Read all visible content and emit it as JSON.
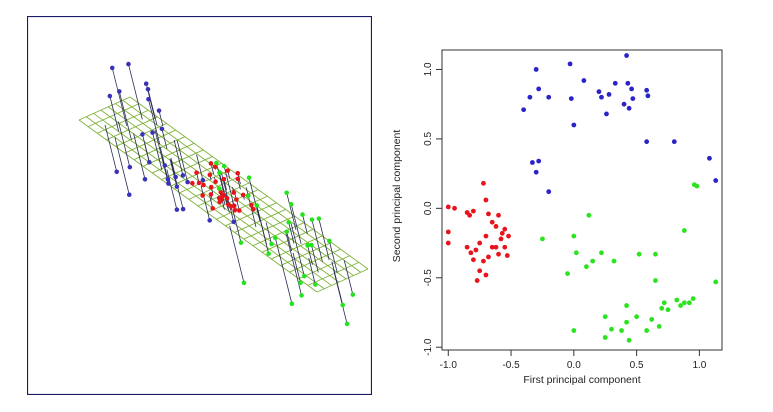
{
  "chart_data": [
    {
      "type": "scatter",
      "panel": "3d-projection",
      "title": "",
      "xlabel": "",
      "ylabel": "",
      "grid": true,
      "colors": {
        "blue": "#3a33b8",
        "red": "#e8141c",
        "green": "#22e41e",
        "plane": "#7fb23a",
        "frame": "#1a1a66",
        "projection_line": "#2a2a55"
      }
    },
    {
      "type": "scatter",
      "panel": "pca-scores",
      "title": "",
      "xlabel": "First principal component",
      "ylabel": "Second principal component",
      "xlim": [
        -1.05,
        1.18
      ],
      "ylim": [
        -1.02,
        1.14
      ],
      "xticks": [
        "-1.0",
        "-0.5",
        "0.0",
        "0.5",
        "1.0"
      ],
      "xtick_values": [
        -1.0,
        -0.5,
        0.0,
        0.5,
        1.0
      ],
      "yticks": [
        "-1.0",
        "-0.5",
        "0.0",
        "0.5",
        "1.0"
      ],
      "ytick_values": [
        -1.0,
        -0.5,
        0.0,
        0.5,
        1.0
      ],
      "grid": false,
      "series": [
        {
          "color": "#2a24c8",
          "points": [
            [
              -0.3,
              1.0
            ],
            [
              -0.28,
              0.86
            ],
            [
              -0.2,
              0.8
            ],
            [
              -0.35,
              0.8
            ],
            [
              -0.4,
              0.71
            ],
            [
              -0.03,
              1.04
            ],
            [
              0.08,
              0.92
            ],
            [
              -0.02,
              0.79
            ],
            [
              0.0,
              0.6
            ],
            [
              0.2,
              0.84
            ],
            [
              0.22,
              0.8
            ],
            [
              0.26,
              0.68
            ],
            [
              0.28,
              0.82
            ],
            [
              0.33,
              0.9
            ],
            [
              0.4,
              0.75
            ],
            [
              0.42,
              1.1
            ],
            [
              0.43,
              0.9
            ],
            [
              0.46,
              0.86
            ],
            [
              0.47,
              0.79
            ],
            [
              0.44,
              0.72
            ],
            [
              0.58,
              0.85
            ],
            [
              0.59,
              0.81
            ],
            [
              0.58,
              0.48
            ],
            [
              0.8,
              0.48
            ],
            [
              1.08,
              0.36
            ],
            [
              1.13,
              0.2
            ],
            [
              -0.33,
              0.33
            ],
            [
              -0.28,
              0.34
            ],
            [
              -0.3,
              0.26
            ],
            [
              -0.2,
              0.12
            ]
          ]
        },
        {
          "color": "#e8141c",
          "points": [
            [
              -1.0,
              0.01
            ],
            [
              -0.95,
              0.0
            ],
            [
              -1.0,
              -0.17
            ],
            [
              -1.0,
              -0.25
            ],
            [
              -0.85,
              -0.03
            ],
            [
              -0.83,
              -0.05
            ],
            [
              -0.8,
              -0.02
            ],
            [
              -0.72,
              0.18
            ],
            [
              -0.7,
              0.06
            ],
            [
              -0.68,
              -0.04
            ],
            [
              -0.65,
              -0.1
            ],
            [
              -0.6,
              -0.05
            ],
            [
              -0.62,
              -0.13
            ],
            [
              -0.57,
              -0.18
            ],
            [
              -0.55,
              -0.15
            ],
            [
              -0.52,
              -0.2
            ],
            [
              -0.58,
              -0.22
            ],
            [
              -0.62,
              -0.28
            ],
            [
              -0.7,
              -0.2
            ],
            [
              -0.75,
              -0.25
            ],
            [
              -0.78,
              -0.3
            ],
            [
              -0.82,
              -0.32
            ],
            [
              -0.68,
              -0.35
            ],
            [
              -0.72,
              -0.38
            ],
            [
              -0.8,
              -0.37
            ],
            [
              -0.75,
              -0.45
            ],
            [
              -0.7,
              -0.48
            ],
            [
              -0.77,
              -0.52
            ],
            [
              -0.65,
              -0.28
            ],
            [
              -0.6,
              -0.33
            ],
            [
              -0.55,
              -0.28
            ],
            [
              -0.53,
              -0.34
            ],
            [
              -0.85,
              -0.28
            ]
          ]
        },
        {
          "color": "#2ae41e",
          "points": [
            [
              -0.25,
              -0.22
            ],
            [
              0.12,
              -0.05
            ],
            [
              0.0,
              -0.2
            ],
            [
              -0.05,
              -0.47
            ],
            [
              0.02,
              -0.32
            ],
            [
              0.1,
              -0.42
            ],
            [
              0.15,
              -0.38
            ],
            [
              0.22,
              -0.32
            ],
            [
              0.32,
              -0.38
            ],
            [
              0.52,
              -0.33
            ],
            [
              0.65,
              -0.33
            ],
            [
              0.88,
              -0.16
            ],
            [
              0.96,
              0.17
            ],
            [
              0.98,
              0.16
            ],
            [
              0.65,
              -0.52
            ],
            [
              0.0,
              -0.88
            ],
            [
              0.25,
              -0.78
            ],
            [
              0.25,
              -0.93
            ],
            [
              0.3,
              -0.87
            ],
            [
              0.38,
              -0.88
            ],
            [
              0.42,
              -0.82
            ],
            [
              0.42,
              -0.7
            ],
            [
              0.5,
              -0.78
            ],
            [
              0.58,
              -0.88
            ],
            [
              0.62,
              -0.8
            ],
            [
              0.68,
              -0.85
            ],
            [
              0.7,
              -0.72
            ],
            [
              0.72,
              -0.68
            ],
            [
              0.75,
              -0.73
            ],
            [
              0.82,
              -0.66
            ],
            [
              0.85,
              -0.7
            ],
            [
              0.88,
              -0.68
            ],
            [
              0.92,
              -0.68
            ],
            [
              0.95,
              -0.65
            ],
            [
              1.13,
              -0.53
            ],
            [
              0.44,
              -0.95
            ]
          ]
        }
      ]
    }
  ]
}
